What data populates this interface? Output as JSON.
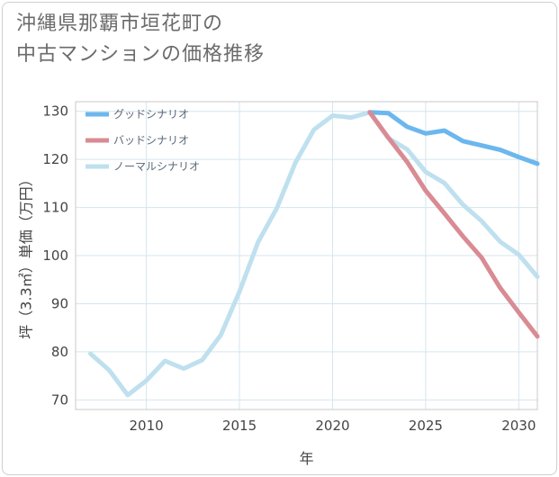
{
  "title_lines": [
    "沖縄県那覇市垣花町の",
    "中古マンションの価格推移"
  ],
  "chart_data": {
    "type": "line",
    "title": "沖縄県那覇市垣花町の中古マンションの価格推移",
    "xlabel": "年",
    "ylabel": "坪（3.3㎡）単価（万円）",
    "xlim": [
      2006.2,
      2031
    ],
    "ylim": [
      68,
      132
    ],
    "xticks": [
      2010,
      2015,
      2020,
      2025,
      2030
    ],
    "yticks": [
      70,
      80,
      90,
      100,
      110,
      120,
      130
    ],
    "grid": true,
    "legend_position": "top-left",
    "series": [
      {
        "name": "グッドシナリオ",
        "color": "#6bb7ee",
        "x": [
          2022,
          2023,
          2024,
          2025,
          2026,
          2027,
          2028,
          2029,
          2030,
          2031
        ],
        "values": [
          129.8,
          129.6,
          126.8,
          125.4,
          126.0,
          123.8,
          122.9,
          122.0,
          120.5,
          119.1
        ]
      },
      {
        "name": "バッドシナリオ",
        "color": "#d98b93",
        "x": [
          2022,
          2023,
          2024,
          2025,
          2026,
          2027,
          2028,
          2029,
          2030,
          2031
        ],
        "values": [
          129.8,
          124.5,
          119.5,
          113.5,
          108.8,
          104.0,
          99.6,
          93.3,
          88.2,
          83.2
        ]
      },
      {
        "name": "ノーマルシナリオ",
        "color": "#bfe0ee",
        "x": [
          2007,
          2008,
          2009,
          2010,
          2011,
          2012,
          2013,
          2014,
          2015,
          2016,
          2017,
          2018,
          2019,
          2020,
          2021,
          2022,
          2023,
          2024,
          2025,
          2026,
          2027,
          2028,
          2029,
          2030,
          2031
        ],
        "values": [
          79.6,
          76.2,
          71.0,
          74.0,
          78.1,
          76.5,
          78.3,
          83.5,
          92.5,
          102.8,
          109.8,
          119.3,
          126.2,
          129.1,
          128.7,
          129.8,
          124.4,
          122.1,
          117.4,
          115.1,
          110.6,
          107.2,
          102.9,
          100.2,
          95.6
        ]
      }
    ]
  }
}
